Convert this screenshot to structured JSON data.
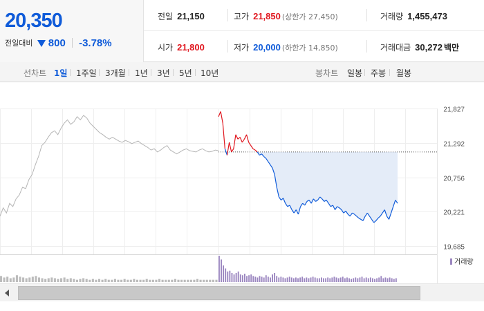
{
  "summary": {
    "price": "20,350",
    "diff_label": "전일대비",
    "diff_value": "800",
    "diff_rate": "-3.78%"
  },
  "stats": {
    "prev_close": {
      "label": "전일",
      "value": "21,150"
    },
    "high": {
      "label": "고가",
      "value": "21,850",
      "sub": "(상한가 27,450)"
    },
    "volume": {
      "label": "거래량",
      "value": "1,455,473"
    },
    "open": {
      "label": "시가",
      "value": "21,800"
    },
    "low": {
      "label": "저가",
      "value": "20,000",
      "sub": "(하한가 14,850)"
    },
    "amount": {
      "label": "거래대금",
      "value": "30,272",
      "unit": "백만"
    }
  },
  "toolbar": {
    "line_chart_label": "선차트",
    "periods": [
      "1일",
      "1주일",
      "3개월",
      "1년",
      "3년",
      "5년",
      "10년"
    ],
    "active_period": "1일",
    "candle_label": "봉차트",
    "candles": [
      "일봉",
      "주봉",
      "월봉"
    ]
  },
  "colors": {
    "up": "#e0171f",
    "down": "#0f5bd9",
    "history": "#b5b5b5",
    "fill": "#e4ecf8",
    "volume_today": "#9b86c0",
    "volume_history": "#bcbcbc"
  },
  "chart_data": {
    "type": "line",
    "y_ticks": [
      "21,827",
      "21,292",
      "20,756",
      "20,221",
      "19,685"
    ],
    "ylim": [
      19685,
      21827
    ],
    "reference_price": 21150,
    "volume_legend": "거래량",
    "previous_session": [
      20150,
      20280,
      20200,
      20350,
      20300,
      20420,
      20480,
      20600,
      20580,
      20720,
      20800,
      20950,
      21080,
      21250,
      21300,
      21380,
      21450,
      21480,
      21420,
      21520,
      21600,
      21650,
      21580,
      21620,
      21700,
      21650,
      21720,
      21680,
      21600,
      21550,
      21500,
      21450,
      21420,
      21380,
      21350,
      21380,
      21350,
      21320,
      21300,
      21330,
      21310,
      21280,
      21300,
      21320,
      21280,
      21250,
      21220,
      21180,
      21200,
      21150,
      21180,
      21220,
      21250,
      21180,
      21150,
      21120,
      21150,
      21180,
      21200,
      21170,
      21160,
      21150,
      21180,
      21200,
      21170,
      21150,
      21160,
      21180,
      21170
    ],
    "today_session": [
      21700,
      21780,
      21600,
      21200,
      21100,
      21300,
      21150,
      21200,
      21420,
      21350,
      21380,
      21300,
      21350,
      21420,
      21300,
      21250,
      21200,
      21180,
      21150,
      21100,
      21120,
      21080,
      21050,
      21000,
      20950,
      20900,
      20800,
      20600,
      20450,
      20400,
      20430,
      20350,
      20300,
      20320,
      20250,
      20200,
      20250,
      20180,
      20300,
      20350,
      20320,
      20380,
      20400,
      20350,
      20420,
      20380,
      20400,
      20450,
      20420,
      20380,
      20400,
      20350,
      20300,
      20320,
      20250,
      20300,
      20280,
      20250,
      20200,
      20230,
      20180,
      20150,
      20200,
      20180,
      20150,
      20120,
      20100,
      20080,
      20150,
      20200,
      20150,
      20100,
      20050,
      20080,
      20120,
      20150,
      20200,
      20250,
      20150,
      20100,
      20200,
      20300,
      20400,
      20350
    ],
    "volume_previous": [
      8,
      6,
      7,
      5,
      6,
      9,
      7,
      6,
      5,
      6,
      7,
      8,
      6,
      5,
      4,
      5,
      6,
      5,
      4,
      5,
      6,
      4,
      5,
      4,
      3,
      4,
      5,
      4,
      3,
      4,
      3,
      4,
      3,
      4,
      3,
      3,
      4,
      3,
      3,
      4,
      3,
      3,
      4,
      3,
      3,
      3,
      4,
      3,
      3,
      3,
      4,
      3,
      3,
      3,
      3,
      4,
      3,
      3,
      3,
      3,
      3,
      3,
      4,
      3,
      3,
      3,
      3,
      3,
      3
    ],
    "volume_today": [
      35,
      30,
      22,
      18,
      14,
      15,
      12,
      10,
      12,
      14,
      10,
      9,
      11,
      8,
      9,
      10,
      8,
      7,
      6,
      8,
      7,
      6,
      9,
      7,
      6,
      10,
      12,
      8,
      6,
      7,
      6,
      5,
      6,
      7,
      6,
      5,
      6,
      5,
      6,
      7,
      5,
      6,
      5,
      6,
      7,
      6,
      5,
      5,
      6,
      5,
      5,
      6,
      5,
      6,
      7,
      6,
      5,
      6,
      7,
      5,
      6,
      5,
      4,
      5,
      6,
      5,
      6,
      7,
      5,
      6,
      5,
      6,
      5,
      4,
      5,
      6,
      8,
      5,
      6,
      5,
      6,
      5,
      4,
      5
    ]
  }
}
